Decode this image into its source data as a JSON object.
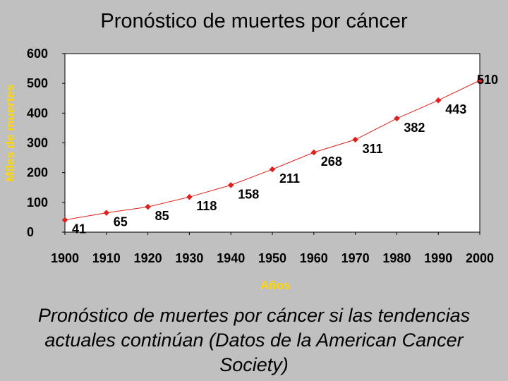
{
  "title": "Pronóstico de muertes por cáncer",
  "caption": "Pronóstico de muertes por cáncer si las tendencias actuales continúan (Datos de la American Cancer Society)",
  "colors": {
    "background": "#c0c0c0",
    "plot_bg": "#ffffff",
    "series": "#e0201a",
    "axis_label": "#ffd700"
  },
  "chart_data": {
    "type": "line",
    "title": "Pronóstico de muertes por cáncer",
    "xlabel": "Años",
    "ylabel": "Miles de muertes",
    "x": [
      1900,
      1910,
      1920,
      1930,
      1940,
      1950,
      1960,
      1970,
      1980,
      1990,
      2000
    ],
    "series": [
      {
        "values": [
          41,
          65,
          85,
          118,
          158,
          211,
          268,
          311,
          382,
          443,
          510
        ]
      }
    ],
    "data_labels": [
      "41",
      "65",
      "85",
      "118",
      "158",
      "211",
      "268",
      "311",
      "382",
      "443",
      "510"
    ],
    "xlim": [
      1900,
      2000
    ],
    "ylim": [
      0,
      600
    ],
    "x_ticks": [
      "1900",
      "1910",
      "1920",
      "1930",
      "1940",
      "1950",
      "1960",
      "1970",
      "1980",
      "1990",
      "2000"
    ],
    "y_ticks": [
      "0",
      "100",
      "200",
      "300",
      "400",
      "500",
      "600"
    ],
    "grid": false,
    "legend": "none"
  }
}
